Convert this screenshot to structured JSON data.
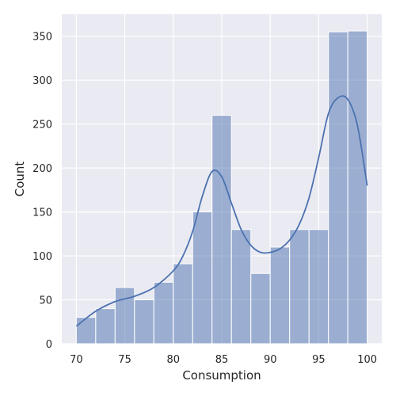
{
  "chart_data": {
    "type": "bar",
    "subtype": "histogram-with-kde",
    "title": "",
    "xlabel": "Consumption",
    "ylabel": "Count",
    "xlim": [
      68.5,
      101.5
    ],
    "ylim": [
      0,
      375
    ],
    "grid": true,
    "legend": "none",
    "x_ticks": [
      70,
      75,
      80,
      85,
      90,
      95,
      100
    ],
    "y_ticks": [
      0,
      50,
      100,
      150,
      200,
      250,
      300,
      350
    ],
    "bins": {
      "start": 70,
      "end": 100,
      "edges": [
        70,
        72,
        74,
        76,
        78,
        80,
        82,
        84,
        86,
        88,
        90,
        92,
        94,
        96,
        98,
        100
      ],
      "counts": [
        30,
        40,
        64,
        50,
        70,
        91,
        150,
        260,
        130,
        80,
        110,
        130,
        130,
        355,
        356
      ]
    },
    "kde": {
      "x": [
        70,
        72,
        74,
        76,
        78,
        80,
        81,
        82,
        83,
        84,
        85,
        86,
        87,
        88,
        89,
        90,
        91,
        92,
        93,
        94,
        95,
        96,
        97,
        98,
        99,
        100
      ],
      "y": [
        20,
        37,
        48,
        54,
        64,
        83,
        100,
        128,
        168,
        196,
        190,
        160,
        130,
        112,
        104,
        104,
        108,
        118,
        136,
        166,
        212,
        262,
        280,
        278,
        248,
        180
      ]
    },
    "colors": {
      "background": "#eaeaf2",
      "grid": "#ffffff",
      "bar_fill": "#4c72b0",
      "bar_fill_opacity": 0.5,
      "bar_edge": "#ffffff",
      "kde_line": "#4c72b0"
    }
  }
}
